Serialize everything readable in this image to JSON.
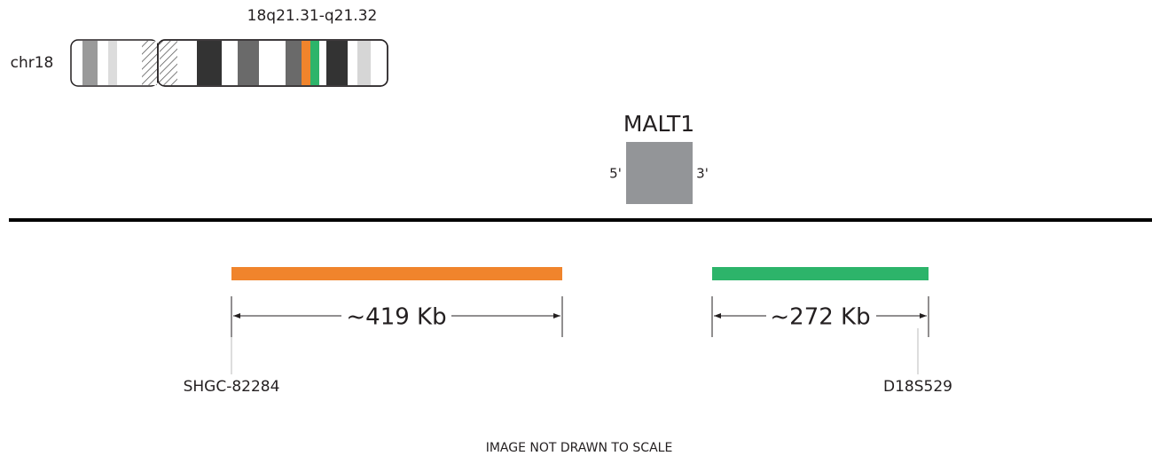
{
  "ideogram": {
    "chromosome": "chr18",
    "band": "18q21.31-q21.32"
  },
  "gene": {
    "name": "MALT1",
    "five_prime": "5'",
    "three_prime": "3'"
  },
  "probes": [
    {
      "size": "~419 Kb",
      "marker": "SHGC-82284",
      "color": "#f0842c"
    },
    {
      "size": "~272 Kb",
      "marker": "D18S529",
      "color": "#2db46a"
    }
  ],
  "footer": "IMAGE NOT DRAWN TO SCALE"
}
